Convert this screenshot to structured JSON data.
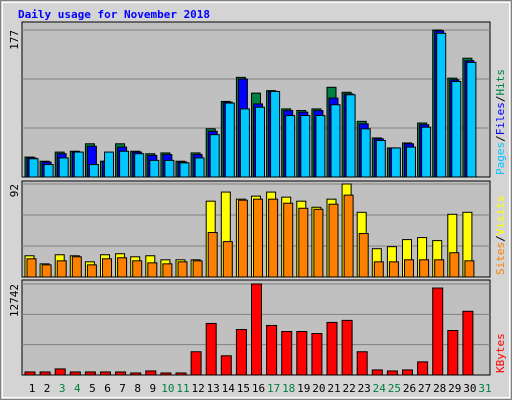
{
  "legend_separator": "/",
  "chart_data": [
    {
      "type": "bar",
      "title": "Daily usage for November 2018",
      "ylim": [
        0,
        177
      ],
      "yticks": [
        177
      ],
      "series": [
        {
          "name": "Hits",
          "color": "#008040",
          "values": [
            24,
            19,
            30,
            31,
            40,
            19,
            40,
            31,
            28,
            29,
            19,
            29,
            58,
            91,
            120,
            101,
            104,
            82,
            80,
            82,
            108,
            102,
            67,
            47,
            35,
            41,
            65,
            177,
            119,
            143,
            null
          ]
        },
        {
          "name": "Files",
          "color": "#0000ff",
          "values": [
            23,
            18,
            28,
            30,
            37,
            19,
            36,
            30,
            26,
            27,
            18,
            27,
            55,
            90,
            118,
            88,
            103,
            80,
            78,
            80,
            95,
            100,
            64,
            46,
            34,
            40,
            63,
            176,
            117,
            140,
            null
          ]
        },
        {
          "name": "Pages",
          "color": "#00c8ff",
          "values": [
            22,
            15,
            23,
            30,
            15,
            30,
            31,
            28,
            20,
            20,
            17,
            23,
            51,
            89,
            82,
            84,
            103,
            74,
            74,
            74,
            87,
            99,
            58,
            44,
            35,
            36,
            60,
            173,
            115,
            138,
            null
          ]
        }
      ]
    },
    {
      "type": "bar",
      "ylim": [
        0,
        92
      ],
      "yticks": [
        92
      ],
      "series": [
        {
          "name": "Visits",
          "color": "#ffff00",
          "values": [
            21,
            13,
            22,
            21,
            15,
            22,
            23,
            20,
            21,
            17,
            17,
            17,
            75,
            84,
            77,
            80,
            84,
            79,
            75,
            69,
            77,
            92,
            64,
            28,
            30,
            37,
            39,
            36,
            62,
            64,
            null
          ]
        },
        {
          "name": "Sites",
          "color": "#ff8000",
          "values": [
            18,
            12,
            16,
            20,
            12,
            18,
            19,
            16,
            14,
            13,
            15,
            16,
            44,
            35,
            76,
            77,
            77,
            73,
            68,
            67,
            72,
            81,
            43,
            15,
            15,
            17,
            17,
            17,
            24,
            16,
            null
          ]
        }
      ]
    },
    {
      "type": "bar",
      "ylim": [
        0,
        12742
      ],
      "yticks": [
        12742
      ],
      "categories": [
        "1",
        "2",
        "3",
        "4",
        "5",
        "6",
        "7",
        "8",
        "9",
        "10",
        "11",
        "12",
        "13",
        "14",
        "15",
        "16",
        "17",
        "18",
        "19",
        "20",
        "21",
        "22",
        "23",
        "24",
        "25",
        "26",
        "27",
        "28",
        "29",
        "30",
        "31"
      ],
      "category_colors": [
        "#000000",
        "#000000",
        "#008040",
        "#008040",
        "#000000",
        "#000000",
        "#000000",
        "#000000",
        "#000000",
        "#008040",
        "#008040",
        "#000000",
        "#000000",
        "#000000",
        "#000000",
        "#000000",
        "#008040",
        "#008040",
        "#000000",
        "#000000",
        "#000000",
        "#000000",
        "#000000",
        "#008040",
        "#008040",
        "#000000",
        "#000000",
        "#000000",
        "#000000",
        "#000000",
        "#008040"
      ],
      "series": [
        {
          "name": "KBytes",
          "color": "#ff0000",
          "values": [
            425,
            425,
            850,
            425,
            425,
            425,
            425,
            283,
            566,
            283,
            283,
            3257,
            7221,
            2690,
            6372,
            12742,
            6938,
            6089,
            6089,
            5806,
            7363,
            7646,
            3257,
            708,
            566,
            708,
            1841,
            12176,
            6230,
            8920,
            null
          ]
        }
      ]
    }
  ]
}
